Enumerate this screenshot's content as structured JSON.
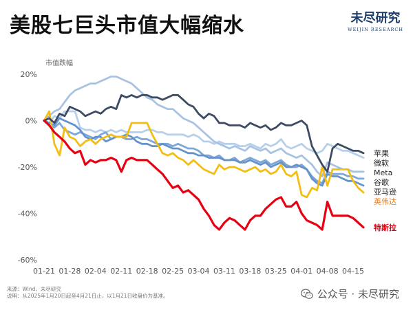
{
  "header": {
    "title": "美股七巨头市值大幅缩水",
    "logo_cn": "未尽研究",
    "logo_en": "WEIJIN RESEARCH"
  },
  "footer": {
    "source": "来源：Wind、未尽研究",
    "note": "说明：从2025年1月20日起至4月21日止，以1月21日收盘价为基准。",
    "wechat": "公众号 · 未尽研究"
  },
  "chart_data": {
    "type": "line",
    "title": "美股七巨头市值大幅缩水",
    "ylabel": "市值跌幅",
    "ylim": [
      -60,
      20
    ],
    "y_ticks": [
      20,
      0,
      -20,
      -40,
      -60
    ],
    "y_tick_labels": [
      "20%",
      "0%",
      "-20%",
      "-40%",
      "-60%"
    ],
    "x_tick_labels": [
      "01-21",
      "01-28",
      "02-04",
      "02-11",
      "02-18",
      "02-25",
      "03-04",
      "03-11",
      "03-18",
      "03-25",
      "04-01",
      "04-08",
      "04-15"
    ],
    "x_tick_positions": [
      0,
      5,
      10,
      15,
      20,
      25,
      30,
      35,
      40,
      45,
      50,
      55,
      60
    ],
    "grid": false,
    "legend": "right end labels",
    "series": [
      {
        "name": "苹果",
        "color": "#3c4a63",
        "label_color": "#222222",
        "values": [
          0,
          1,
          -1,
          3,
          2,
          6,
          5,
          4,
          2,
          3,
          4,
          3,
          5,
          6,
          5,
          11,
          10,
          11,
          10,
          11,
          11,
          10,
          10,
          9,
          10,
          11,
          11,
          9,
          7,
          6,
          3,
          1,
          3,
          2,
          -1,
          -1,
          -2,
          -2,
          -2,
          -3,
          -1,
          -2,
          -3,
          -2,
          -4,
          -3,
          -1,
          -2,
          -2,
          -1,
          0,
          -2,
          -11,
          -15,
          -19,
          -22,
          -12,
          -10,
          -11,
          -12,
          -13,
          -13,
          -14
        ]
      },
      {
        "name": "微软",
        "color": "#b7cfe9",
        "label_color": "#222222",
        "values": [
          0,
          -1,
          2,
          1,
          4,
          4,
          4,
          -3,
          -4,
          -4,
          -5,
          -4,
          -5,
          -4,
          -5,
          -4,
          -5,
          -5,
          -5,
          -5,
          -4,
          -4,
          -5,
          -5,
          -6,
          -6,
          -6,
          -6,
          -7,
          -6,
          -7,
          -9,
          -9,
          -10,
          -9,
          -10,
          -10,
          -10,
          -11,
          -11,
          -10,
          -11,
          -12,
          -10,
          -11,
          -10,
          -8,
          -11,
          -12,
          -11,
          -10,
          -12,
          -13,
          -14,
          -13,
          -10,
          -11,
          -12,
          -13,
          -13,
          -14,
          -15,
          -16
        ]
      },
      {
        "name": "Meta",
        "color": "#a8c3e2",
        "label_color": "#222222",
        "values": [
          0,
          2,
          4,
          5,
          8,
          11,
          13,
          14,
          15,
          16,
          16,
          17,
          18,
          19,
          19,
          18,
          17,
          16,
          14,
          12,
          10,
          9,
          7,
          6,
          5,
          5,
          3,
          1,
          0,
          -1,
          -3,
          -5,
          -7,
          -9,
          -10,
          -11,
          -12,
          -11,
          -12,
          -13,
          -11,
          -12,
          -13,
          -12,
          -14,
          -13,
          -12,
          -14,
          -15,
          -16,
          -15,
          -17,
          -19,
          -22,
          -24,
          -18,
          -19,
          -20,
          -21,
          -21,
          -22,
          -22,
          -22
        ]
      },
      {
        "name": "谷歌",
        "color": "#7ea6d6",
        "label_color": "#222222",
        "values": [
          0,
          -2,
          -3,
          -1,
          -4,
          -5,
          -6,
          -5,
          -6,
          -7,
          -8,
          -6,
          -5,
          -8,
          -7,
          -7,
          -8,
          -8,
          -7,
          -8,
          -8,
          -9,
          -10,
          -10,
          -10,
          -11,
          -10,
          -11,
          -12,
          -12,
          -13,
          -15,
          -15,
          -16,
          -15,
          -17,
          -17,
          -16,
          -18,
          -17,
          -16,
          -17,
          -18,
          -17,
          -19,
          -18,
          -17,
          -19,
          -20,
          -20,
          -19,
          -21,
          -24,
          -26,
          -27,
          -22,
          -23,
          -23,
          -23,
          -24,
          -24,
          -25,
          -25
        ]
      },
      {
        "name": "亚马逊",
        "color": "#6392cc",
        "label_color": "#222222",
        "values": [
          0,
          -1,
          -2,
          1,
          0,
          -1,
          -2,
          -4,
          -7,
          -8,
          -7,
          -7,
          -9,
          -8,
          -7,
          -7,
          -6,
          -7,
          -9,
          -10,
          -10,
          -11,
          -11,
          -10,
          -11,
          -12,
          -12,
          -13,
          -14,
          -14,
          -15,
          -15,
          -16,
          -16,
          -16,
          -17,
          -17,
          -17,
          -18,
          -18,
          -17,
          -18,
          -19,
          -18,
          -20,
          -19,
          -18,
          -20,
          -20,
          -19,
          -20,
          -21,
          -25,
          -27,
          -28,
          -23,
          -24,
          -24,
          -25,
          -26,
          -26,
          -27,
          -28
        ]
      },
      {
        "name": "英伟达",
        "color": "#f3bd14",
        "label_color": "#e67e22",
        "values": [
          0,
          4,
          -10,
          -15,
          -3,
          -7,
          -8,
          -11,
          -9,
          -8,
          -10,
          -8,
          -7,
          -6,
          -7,
          -7,
          -7,
          -1,
          -1,
          -1,
          -1,
          -6,
          -10,
          -14,
          -15,
          -14,
          -16,
          -17,
          -19,
          -17,
          -19,
          -21,
          -22,
          -23,
          -19,
          -21,
          -20,
          -20,
          -21,
          -22,
          -21,
          -20,
          -22,
          -21,
          -23,
          -22,
          -19,
          -23,
          -24,
          -22,
          -32,
          -33,
          -29,
          -30,
          -20,
          -28,
          -21,
          -21,
          -21,
          -21,
          -26,
          -29,
          -31
        ]
      },
      {
        "name": "特斯拉",
        "color": "#e60012",
        "label_color": "#e60012",
        "values": [
          0,
          -2,
          -5,
          -7,
          -9,
          -12,
          -14,
          -13,
          -19,
          -17,
          -18,
          -17,
          -17,
          -16,
          -17,
          -22,
          -17,
          -16,
          -17,
          -17,
          -17,
          -19,
          -21,
          -23,
          -26,
          -29,
          -28,
          -31,
          -30,
          -32,
          -34,
          -38,
          -41,
          -45,
          -47,
          -44,
          -42,
          -43,
          -45,
          -47,
          -43,
          -41,
          -41,
          -38,
          -36,
          -34,
          -33,
          -37,
          -37,
          -35,
          -40,
          -43,
          -44,
          -45,
          -47,
          -35,
          -41,
          -41,
          -41,
          -41,
          -42,
          -44,
          -46
        ]
      }
    ]
  }
}
